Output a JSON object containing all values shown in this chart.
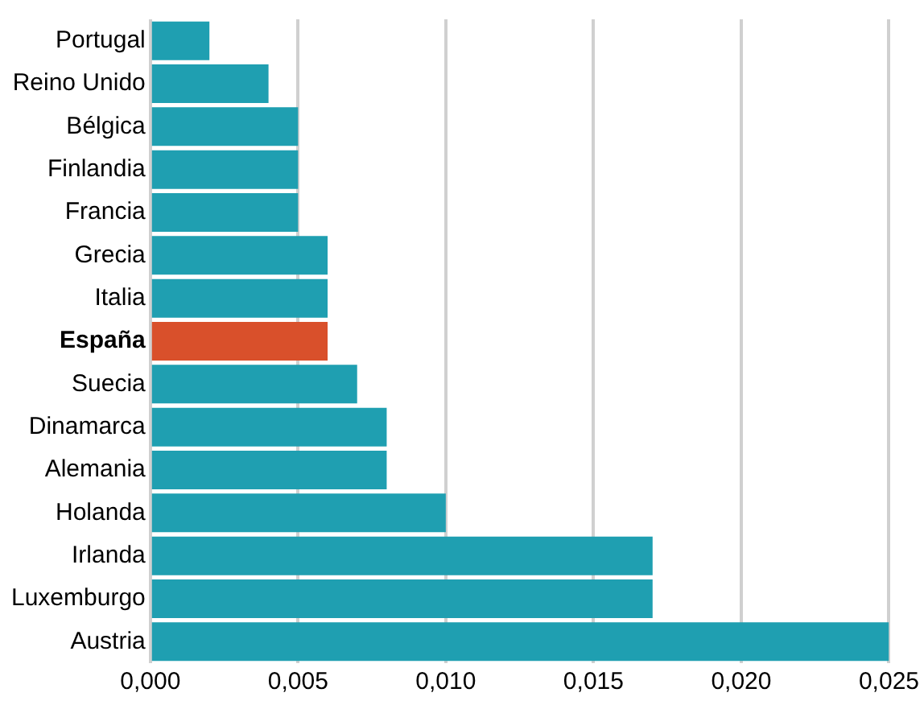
{
  "chart_data": {
    "type": "bar",
    "orientation": "horizontal",
    "categories": [
      "Portugal",
      "Reino Unido",
      "Bélgica",
      "Finlandia",
      "Francia",
      "Grecia",
      "Italia",
      "España",
      "Suecia",
      "Dinamarca",
      "Alemania",
      "Holanda",
      "Irlanda",
      "Luxemburgo",
      "Austria"
    ],
    "values": [
      0.002,
      0.004,
      0.005,
      0.005,
      0.005,
      0.006,
      0.006,
      0.006,
      0.007,
      0.008,
      0.008,
      0.01,
      0.017,
      0.017,
      0.025
    ],
    "colors": [
      "#1f9fb1",
      "#1f9fb1",
      "#1f9fb1",
      "#1f9fb1",
      "#1f9fb1",
      "#1f9fb1",
      "#1f9fb1",
      "#d9502b",
      "#1f9fb1",
      "#1f9fb1",
      "#1f9fb1",
      "#1f9fb1",
      "#1f9fb1",
      "#1f9fb1",
      "#1f9fb1"
    ],
    "xlim": [
      0,
      0.025
    ],
    "xticks": [
      {
        "value": 0,
        "label": "0,000"
      },
      {
        "value": 0.005,
        "label": "0,005"
      },
      {
        "value": 0.01,
        "label": "0,010"
      },
      {
        "value": 0.015,
        "label": "0,015"
      },
      {
        "value": 0.02,
        "label": "0,020"
      },
      {
        "value": 0.025,
        "label": "0,025"
      }
    ],
    "grid": "x",
    "legend": false
  }
}
